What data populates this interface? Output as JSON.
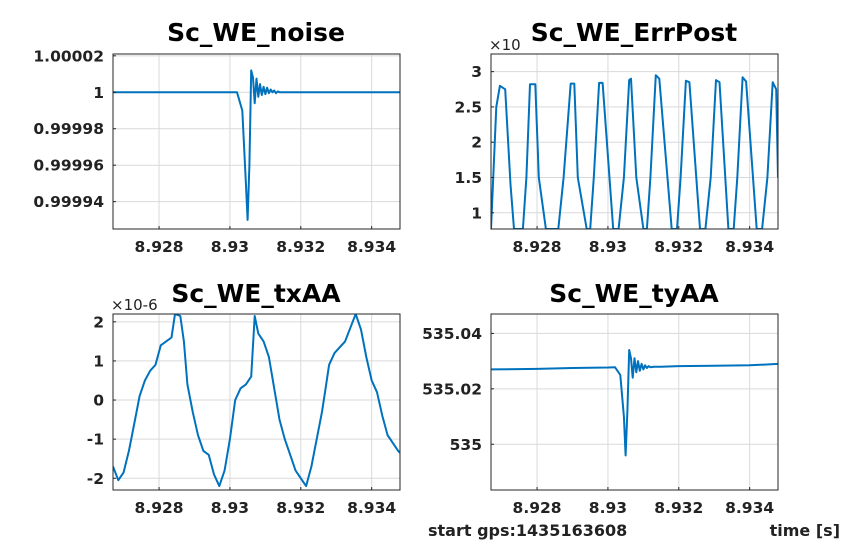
{
  "chart_data": [
    {
      "type": "line",
      "title": "Sc_WE_noise",
      "exponent": "",
      "xlim": [
        8.9267,
        8.9348
      ],
      "ylim": [
        0.999925,
        1.000021
      ],
      "xticks": [
        8.928,
        8.93,
        8.932,
        8.934
      ],
      "xtick_labels": [
        "8.928",
        "8.93",
        "8.932",
        "8.934"
      ],
      "yticks": [
        0.99994,
        0.99996,
        0.99998,
        1,
        1.00002
      ],
      "ytick_labels": [
        "0.99994",
        "0.99996",
        "0.99998",
        "1",
        "1.00002"
      ],
      "grid": true,
      "series": [
        {
          "color": "#0072bd",
          "x": [
            8.9267,
            8.929,
            8.9302,
            8.93035,
            8.93045,
            8.9305,
            8.93055,
            8.9306,
            8.93065,
            8.9307,
            8.93075,
            8.9308,
            8.93085,
            8.9309,
            8.93095,
            8.931,
            8.93105,
            8.9311,
            8.93115,
            8.9312,
            8.93125,
            8.9313,
            8.93135,
            8.9314,
            8.9315,
            8.9316,
            8.932,
            8.934,
            8.9348
          ],
          "y": [
            1.0,
            1.0,
            1.0,
            0.99999,
            0.99995,
            0.99993,
            0.99996,
            1.000012,
            1.000008,
            0.999994,
            1.0000075,
            0.9999975,
            1.0000045,
            0.9999985,
            1.000003,
            0.999999,
            1.0000025,
            0.9999995,
            1.0000015,
            1.0,
            1.000001,
            0.9999995,
            1.0000005,
            1.0,
            1.0,
            1.0,
            1.0,
            1.0,
            1.0
          ]
        }
      ]
    },
    {
      "type": "line",
      "title": "Sc_WE_ErrPost",
      "exponent": "×10",
      "xlim": [
        8.9267,
        8.9348
      ],
      "ylim": [
        0.77,
        3.25
      ],
      "xticks": [
        8.928,
        8.93,
        8.932,
        8.934
      ],
      "xtick_labels": [
        "8.928",
        "8.93",
        "8.932",
        "8.934"
      ],
      "yticks": [
        1,
        1.5,
        2,
        2.5,
        3
      ],
      "ytick_labels": [
        "1",
        "1.5",
        "2",
        "2.5",
        "3"
      ],
      "grid": true,
      "series": [
        {
          "color": "#0072bd",
          "x": [
            8.9267,
            8.92685,
            8.92695,
            8.9271,
            8.92725,
            8.92735,
            8.9276,
            8.9277,
            8.9278,
            8.92795,
            8.92805,
            8.92825,
            8.9286,
            8.92875,
            8.92895,
            8.92905,
            8.92915,
            8.9294,
            8.9295,
            8.9296,
            8.92975,
            8.92985,
            8.93015,
            8.9303,
            8.93045,
            8.9306,
            8.93065,
            8.9308,
            8.931,
            8.9311,
            8.9312,
            8.93135,
            8.93145,
            8.9318,
            8.93195,
            8.93205,
            8.9322,
            8.9323,
            8.9326,
            8.93275,
            8.9329,
            8.93305,
            8.93315,
            8.9334,
            8.93355,
            8.93365,
            8.9338,
            8.9339,
            8.9342,
            8.93435,
            8.9345,
            8.93465,
            8.93475,
            8.9348
          ],
          "y": [
            0.77,
            2.5,
            2.8,
            2.75,
            1.4,
            0.77,
            0.77,
            1.5,
            2.82,
            2.82,
            1.5,
            0.77,
            0.77,
            1.5,
            2.83,
            2.83,
            1.5,
            0.77,
            0.77,
            1.5,
            2.84,
            2.84,
            0.77,
            0.77,
            1.5,
            2.88,
            2.9,
            1.5,
            0.77,
            0.77,
            1.5,
            2.95,
            2.9,
            0.77,
            0.77,
            1.5,
            2.87,
            2.85,
            0.77,
            0.77,
            1.5,
            2.88,
            2.85,
            0.77,
            0.77,
            1.5,
            2.92,
            2.86,
            0.77,
            0.77,
            1.5,
            2.85,
            2.75,
            1.5
          ]
        }
      ]
    },
    {
      "type": "line",
      "title": "Sc_WE_txAA",
      "exponent": "×10-6",
      "xlim": [
        8.9267,
        8.9348
      ],
      "ylim": [
        -2.3,
        2.2
      ],
      "xticks": [
        8.928,
        8.93,
        8.932,
        8.934
      ],
      "xtick_labels": [
        "8.928",
        "8.93",
        "8.932",
        "8.934"
      ],
      "yticks": [
        -2,
        -1,
        0,
        1,
        2
      ],
      "ytick_labels": [
        "-2",
        "-1",
        "0",
        "1",
        "2"
      ],
      "grid": true,
      "series": [
        {
          "color": "#0072bd",
          "x": [
            8.9267,
            8.92685,
            8.927,
            8.92715,
            8.9273,
            8.92745,
            8.9276,
            8.92775,
            8.9279,
            8.92805,
            8.9282,
            8.92835,
            8.92845,
            8.9286,
            8.9287,
            8.9288,
            8.92895,
            8.9291,
            8.92925,
            8.9294,
            8.92955,
            8.9297,
            8.92985,
            8.93,
            8.93015,
            8.9303,
            8.93045,
            8.9306,
            8.9307,
            8.9308,
            8.93095,
            8.9311,
            8.93125,
            8.9314,
            8.93155,
            8.9317,
            8.93185,
            8.932,
            8.93215,
            8.9323,
            8.93245,
            8.9326,
            8.9327,
            8.9328,
            8.93295,
            8.9331,
            8.93325,
            8.9334,
            8.93355,
            8.9337,
            8.93385,
            8.934,
            8.93415,
            8.9343,
            8.93445,
            8.9346,
            8.93475,
            8.9348
          ],
          "y": [
            -1.7,
            -2.05,
            -1.85,
            -1.3,
            -0.6,
            0.1,
            0.5,
            0.75,
            0.9,
            1.4,
            1.5,
            1.6,
            2.2,
            2.15,
            1.5,
            0.4,
            -0.3,
            -0.9,
            -1.3,
            -1.4,
            -1.9,
            -2.2,
            -1.8,
            -1.0,
            0.0,
            0.3,
            0.4,
            0.6,
            2.15,
            1.7,
            1.5,
            1.1,
            0.3,
            -0.5,
            -1.0,
            -1.4,
            -1.8,
            -2.0,
            -2.2,
            -1.7,
            -1.0,
            -0.3,
            0.3,
            0.9,
            1.2,
            1.35,
            1.5,
            1.85,
            2.2,
            1.8,
            1.1,
            0.5,
            0.2,
            -0.4,
            -0.9,
            -1.1,
            -1.3,
            -1.35
          ]
        }
      ]
    },
    {
      "type": "line",
      "title": "Sc_WE_tyAA",
      "exponent": "",
      "xlim": [
        8.9267,
        8.9348
      ],
      "ylim": [
        534.9835,
        535.047
      ],
      "xticks": [
        8.928,
        8.93,
        8.932,
        8.934
      ],
      "xtick_labels": [
        "8.928",
        "8.93",
        "8.932",
        "8.934"
      ],
      "yticks": [
        535,
        535.02,
        535.04
      ],
      "ytick_labels": [
        "535",
        "535.02",
        "535.04"
      ],
      "grid": true,
      "series": [
        {
          "color": "#0072bd",
          "x": [
            8.9267,
            8.928,
            8.929,
            8.93,
            8.9302,
            8.93035,
            8.93045,
            8.9305,
            8.93055,
            8.9306,
            8.93065,
            8.9307,
            8.93075,
            8.9308,
            8.93085,
            8.9309,
            8.93095,
            8.931,
            8.93105,
            8.9311,
            8.93115,
            8.9312,
            8.9313,
            8.9315,
            8.932,
            8.933,
            8.934,
            8.9348
          ],
          "y": [
            535.027,
            535.0272,
            535.0275,
            535.0277,
            535.0278,
            535.025,
            535.01,
            534.996,
            535.012,
            535.034,
            535.031,
            535.024,
            535.031,
            535.026,
            535.03,
            535.0265,
            535.029,
            535.027,
            535.0285,
            535.0275,
            535.0282,
            535.0278,
            535.028,
            535.028,
            535.0282,
            535.0283,
            535.0285,
            535.029
          ]
        }
      ]
    }
  ],
  "footer": {
    "start_gps": "start gps:1435163608",
    "xlabel": "time [s]"
  }
}
